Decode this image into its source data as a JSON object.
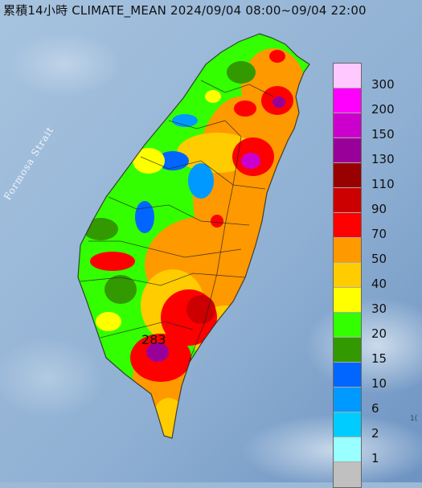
{
  "title": "累積14小時 CLIMATE_MEAN 2024/09/04 08:00~09/04 22:00",
  "strait_label": "Formosa Strait",
  "peak_label": "283",
  "legend": {
    "labels": [
      "300",
      "200",
      "150",
      "130",
      "110",
      "90",
      "70",
      "50",
      "40",
      "30",
      "20",
      "15",
      "10",
      "6",
      "2",
      "1"
    ],
    "colors": [
      "#ffc8ff",
      "#ff00ff",
      "#cc00cc",
      "#990099",
      "#990000",
      "#cc0000",
      "#ff0000",
      "#ff9900",
      "#ffcc00",
      "#ffff00",
      "#33ff00",
      "#339900",
      "#0066ff",
      "#0099ff",
      "#00ccff",
      "#99ffff",
      "#c0c0c0"
    ]
  },
  "corner_text": "1("
}
